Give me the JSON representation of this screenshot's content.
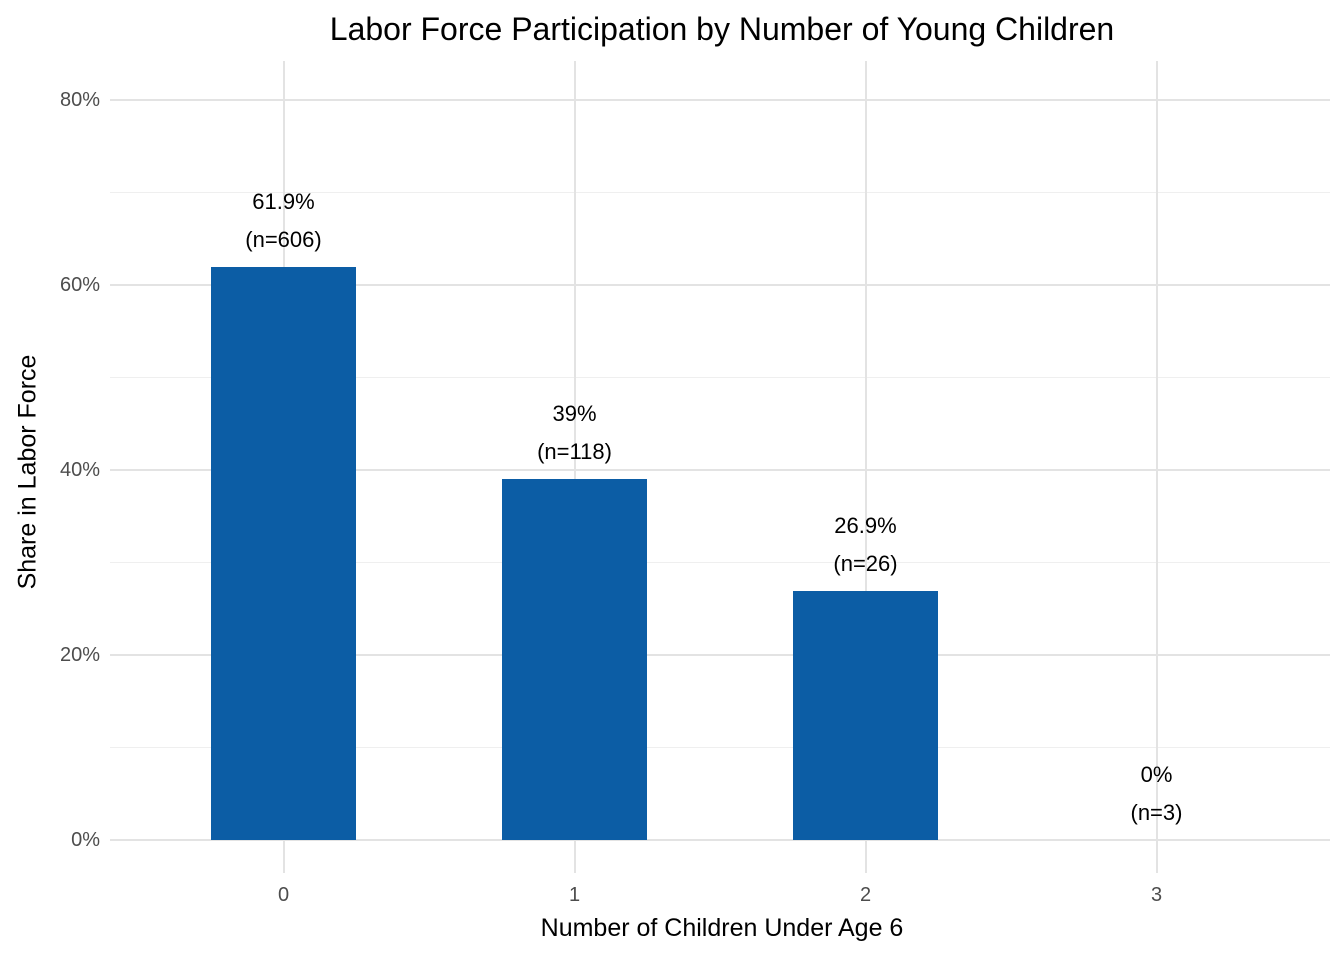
{
  "title": "Labor Force Participation by Number of Young Children",
  "chart_data": {
    "type": "bar",
    "title": "Labor Force Participation by Number of Young Children",
    "xlabel": "Number of Children Under Age 6",
    "ylabel": "Share in Labor Force",
    "categories": [
      "0",
      "1",
      "2",
      "3"
    ],
    "values": [
      61.9,
      39,
      26.9,
      0
    ],
    "counts": [
      606,
      118,
      26,
      3
    ],
    "bar_labels": [
      [
        "61.9%",
        "(n=606)"
      ],
      [
        "39%",
        "(n=118)"
      ],
      [
        "26.9%",
        "(n=26)"
      ],
      [
        "0%",
        "(n=3)"
      ]
    ],
    "y_ticks": [
      "0%",
      "20%",
      "40%",
      "60%",
      "80%"
    ],
    "y_tick_values": [
      0,
      20,
      40,
      60,
      80
    ],
    "ylim": [
      0,
      84
    ],
    "grid": "major-and-minor-horizontal, major-vertical",
    "legend": "none",
    "bar_color": "#0c5da5",
    "major_grid_color": "#e3e3e3",
    "minor_grid_color": "#efefef",
    "tick_label_color": "#4d4d4d",
    "text_color": "#000000"
  }
}
